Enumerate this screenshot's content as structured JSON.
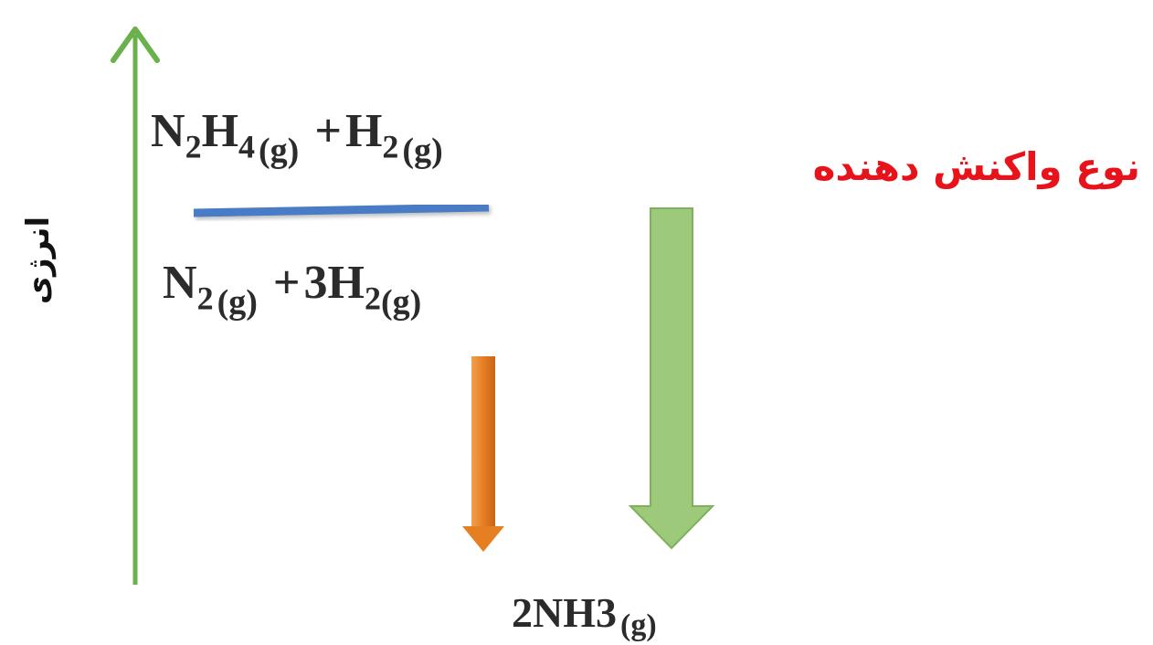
{
  "axis": {
    "label": "انرژی"
  },
  "title": "نوع واکنش دهنده",
  "levels": {
    "top": {
      "base": "N",
      "parts": [
        [
          "N",
          "2"
        ],
        [
          "H",
          "4"
        ]
      ],
      "state": "(g)",
      "plus": "+",
      "second": [
        [
          "H",
          "2"
        ]
      ],
      "second_state": "(g)"
    },
    "middle": {
      "parts": [
        [
          "N",
          "2"
        ]
      ],
      "state": "(g)",
      "plus": "+",
      "coef": "3",
      "second": [
        [
          "H",
          "2"
        ]
      ],
      "second_state": "(g)"
    },
    "bottom": {
      "coef": "2",
      "text": "NH3",
      "state": "(g)"
    }
  },
  "colors": {
    "axis": "#6ab04c",
    "level_line": "#4a7cc4",
    "orange_arrow": "#e67e22",
    "green_arrow": "#9cc97a",
    "green_arrow_stroke": "#7fb05a",
    "title": "#e8131a",
    "text": "#2b2b2b"
  }
}
